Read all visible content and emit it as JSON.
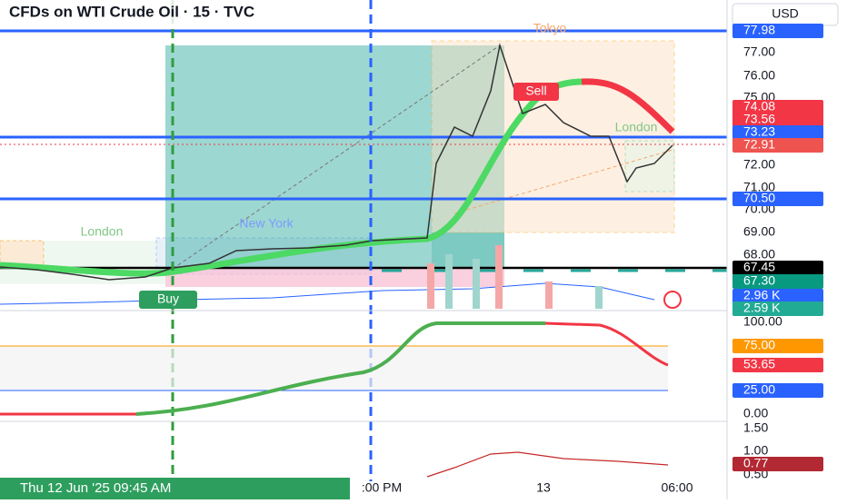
{
  "header": {
    "title": "CFDs on WTI Crude Oil · 15 · TVC",
    "currency": "USD"
  },
  "annotations": {
    "tokyo": "Tokyo",
    "london_right": "London",
    "new_york": "New York",
    "london_left": "London",
    "sell": "Sell",
    "buy": "Buy"
  },
  "price_axis": [
    "77.00",
    "76.00",
    "75.00",
    "72.00",
    "71.00",
    "70.00",
    "69.00",
    "68.00"
  ],
  "price_tags": [
    {
      "text": "77.98",
      "color": "#2962ff"
    },
    {
      "text": "74.08",
      "color": "#f23645"
    },
    {
      "text": "73.56",
      "color": "#f23645"
    },
    {
      "text": "73.23",
      "color": "#2962ff"
    },
    {
      "text": "72.91",
      "color": "#ef5350"
    },
    {
      "text": "70.50",
      "color": "#2962ff"
    },
    {
      "text": "67.45",
      "color": "#000000"
    },
    {
      "text": "67.30",
      "color": "#089981"
    },
    {
      "text": "2.96 K",
      "color": "#2962ff"
    },
    {
      "text": "2.59 K",
      "color": "#22ab94"
    }
  ],
  "oscillator_axis": [
    "100.00",
    "0.00",
    "1.50",
    "1.00",
    "0.50"
  ],
  "oscillator_tags": [
    {
      "text": "75.00",
      "color": "#ff9800"
    },
    {
      "text": "53.65",
      "color": "#f23645"
    },
    {
      "text": "25.00",
      "color": "#2962ff"
    },
    {
      "text": "0.77",
      "color": "#b22833"
    }
  ],
  "time_axis": {
    "cursor": "Thu 12 Jun '25   09:45 AM",
    "labels": [
      ":00 PM",
      "13",
      "06:00"
    ]
  }
}
